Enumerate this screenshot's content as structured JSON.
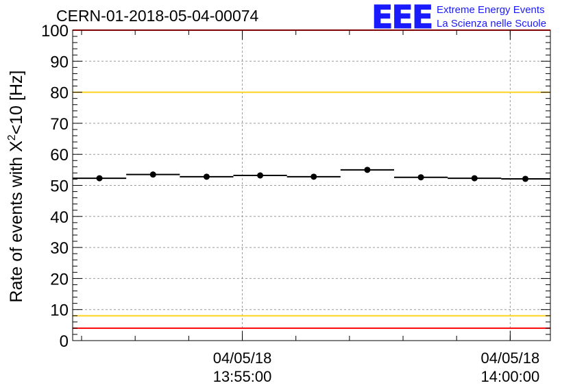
{
  "header": {
    "run_title": "CERN-01-2018-05-04-00074",
    "logo_text": "EEE",
    "brand_line1": "Extreme Energy Events",
    "brand_line2": "La Scienza nelle Scuole"
  },
  "colors": {
    "logo_blue": "#1a1aff",
    "red_limit": "#ff0000",
    "yellow_limit": "#ffd21f",
    "grid": "#9a9a9a",
    "data": "#000000"
  },
  "chart_data": {
    "type": "scatter",
    "title": "CERN-01-2018-05-04-00074",
    "ylabel_main": "Rate of events with X",
    "ylabel_sup": "2",
    "ylabel_tail": "<10 [Hz]",
    "xlabel": "",
    "ylim": [
      0,
      100
    ],
    "y_ticks": [
      0,
      10,
      20,
      30,
      40,
      50,
      60,
      70,
      80,
      90,
      100
    ],
    "y_tick_labels": [
      "0",
      "10",
      "20",
      "30",
      "40",
      "50",
      "60",
      "70",
      "80",
      "90",
      "100"
    ],
    "x_range": [
      "13:51:50",
      "14:00:45"
    ],
    "x_tick_labels": [
      {
        "time": "13:55:00",
        "date": "04/05/18",
        "label": "13:55:00"
      },
      {
        "time": "14:00:00",
        "date": "04/05/18",
        "label": "14:00:00"
      }
    ],
    "grid": true,
    "bins": [
      {
        "start": "13:51:50",
        "end": "13:52:50",
        "center": "13:52:20",
        "value": 52.3
      },
      {
        "start": "13:52:50",
        "end": "13:53:50",
        "center": "13:53:20",
        "value": 53.5
      },
      {
        "start": "13:53:50",
        "end": "13:54:50",
        "center": "13:54:20",
        "value": 52.8
      },
      {
        "start": "13:54:50",
        "end": "13:55:50",
        "center": "13:55:20",
        "value": 53.2
      },
      {
        "start": "13:55:50",
        "end": "13:56:50",
        "center": "13:56:20",
        "value": 52.8
      },
      {
        "start": "13:56:50",
        "end": "13:57:50",
        "center": "13:57:20",
        "value": 55.0
      },
      {
        "start": "13:57:50",
        "end": "13:58:50",
        "center": "13:58:20",
        "value": 52.6
      },
      {
        "start": "13:58:50",
        "end": "13:59:50",
        "center": "13:59:20",
        "value": 52.3
      },
      {
        "start": "13:59:50",
        "end": "14:00:45",
        "center": "14:00:17",
        "value": 52.1
      }
    ],
    "reference_lines": [
      {
        "value": 100,
        "color": "red"
      },
      {
        "value": 80,
        "color": "yellow"
      },
      {
        "value": 8,
        "color": "yellow"
      },
      {
        "value": 4,
        "color": "red"
      }
    ]
  }
}
